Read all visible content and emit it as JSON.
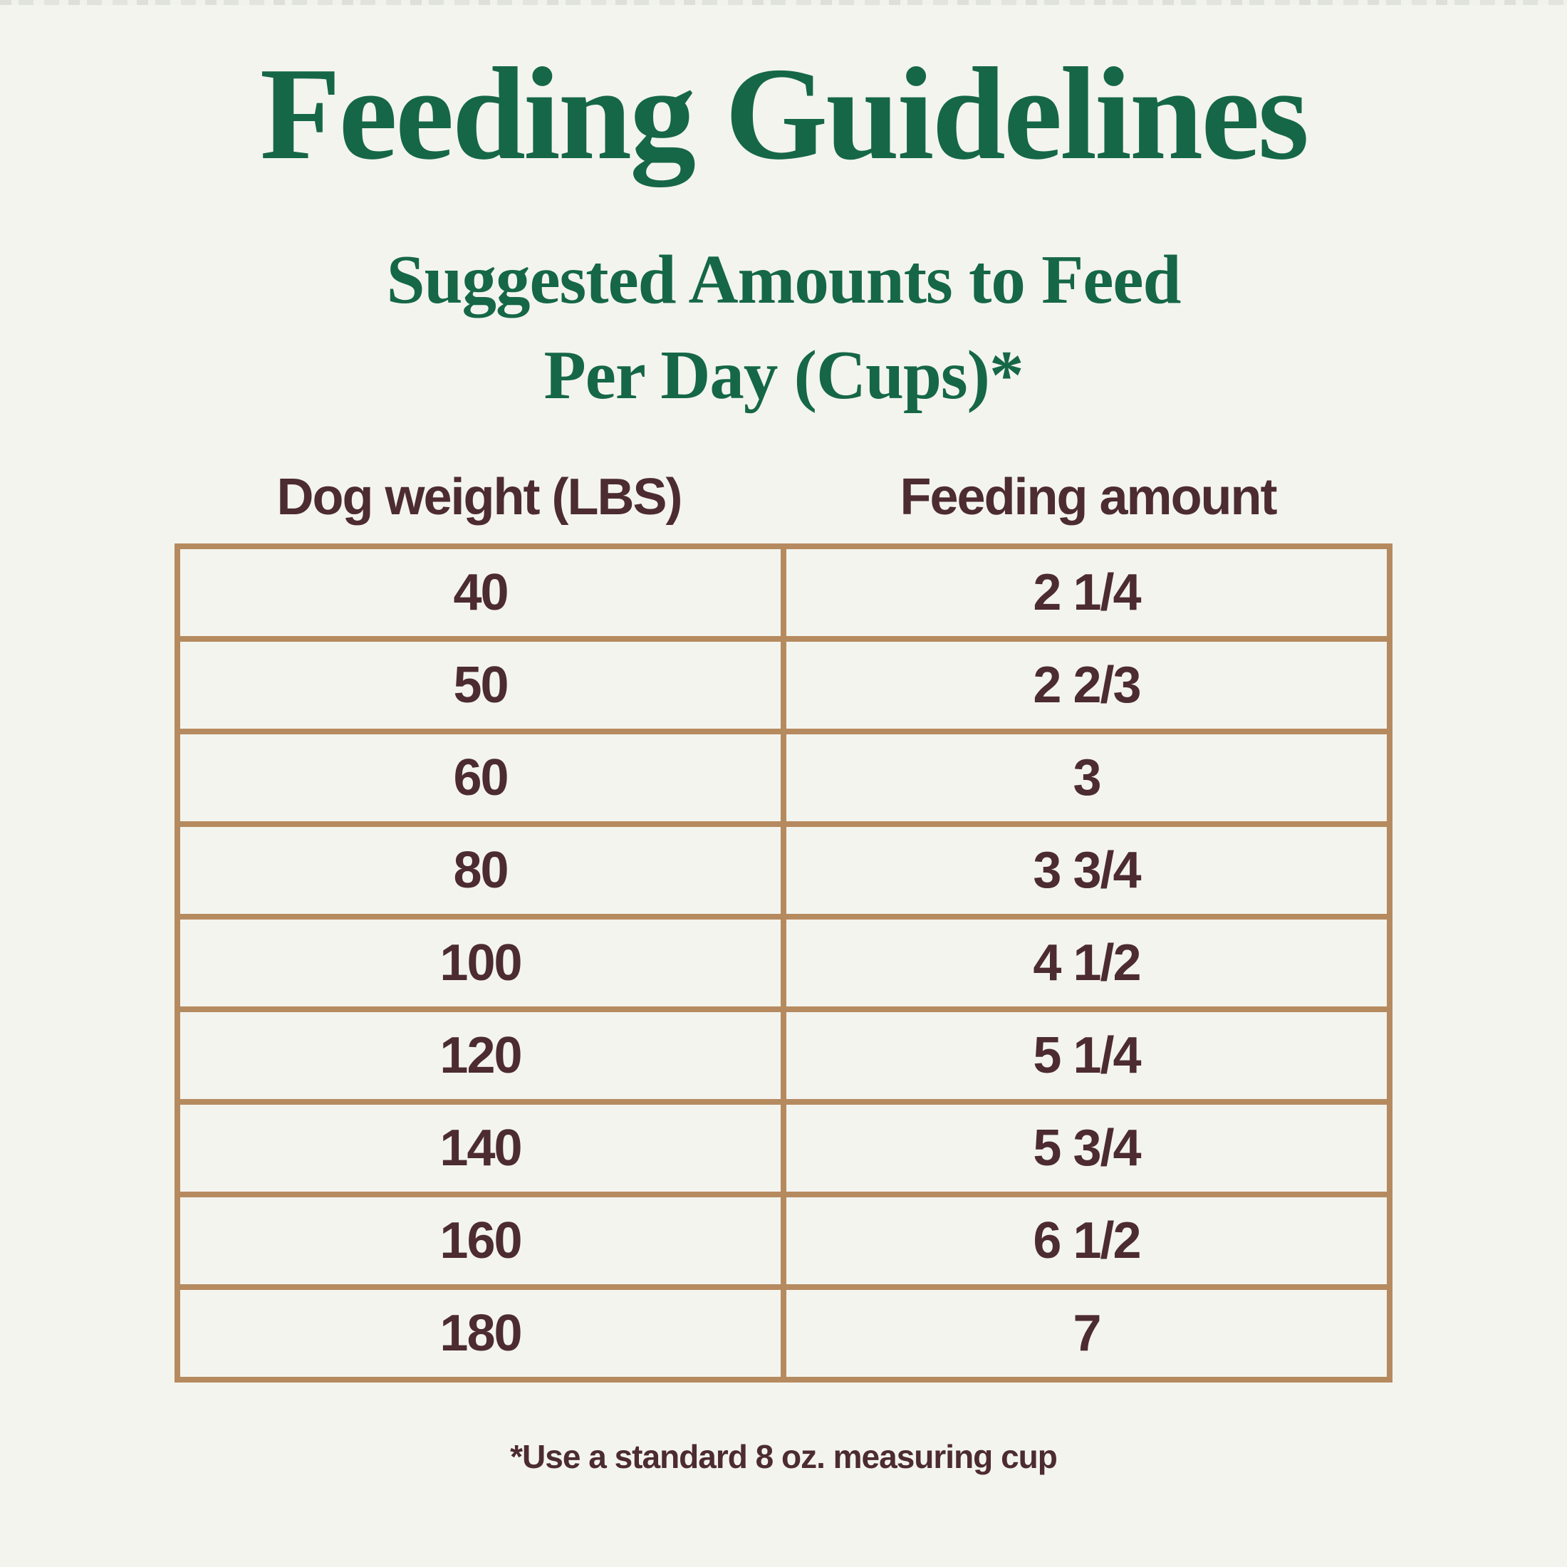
{
  "page": {
    "title": "Feeding Guidelines",
    "subtitle_line1": "Suggested Amounts to Feed",
    "subtitle_line2": "Per Day (Cups)*",
    "footnote": "*Use a standard 8 oz. measuring cup"
  },
  "table": {
    "headers": {
      "weight": "Dog weight (LBS)",
      "amount": "Feeding amount"
    },
    "rows": [
      {
        "weight": "40",
        "amount": "2 1/4"
      },
      {
        "weight": "50",
        "amount": "2 2/3"
      },
      {
        "weight": "60",
        "amount": "3"
      },
      {
        "weight": "80",
        "amount": "3 3/4"
      },
      {
        "weight": "100",
        "amount": "4 1/2"
      },
      {
        "weight": "120",
        "amount": "5 1/4"
      },
      {
        "weight": "140",
        "amount": "5 3/4"
      },
      {
        "weight": "160",
        "amount": "6 1/2"
      },
      {
        "weight": "180",
        "amount": "7"
      }
    ]
  },
  "colors": {
    "background": "#f3f4ee",
    "heading_green": "#156747",
    "text_brown": "#4c2b31",
    "border_tan": "#b68a5f"
  },
  "chart_data": {
    "type": "table",
    "title": "Feeding Guidelines",
    "subtitle": "Suggested Amounts to Feed Per Day (Cups)*",
    "columns": [
      "Dog weight (LBS)",
      "Feeding amount"
    ],
    "rows": [
      [
        "40",
        "2 1/4"
      ],
      [
        "50",
        "2 2/3"
      ],
      [
        "60",
        "3"
      ],
      [
        "80",
        "3 3/4"
      ],
      [
        "100",
        "4 1/2"
      ],
      [
        "120",
        "5 1/4"
      ],
      [
        "140",
        "5 3/4"
      ],
      [
        "160",
        "6 1/2"
      ],
      [
        "180",
        "7"
      ]
    ],
    "footnote": "*Use a standard 8 oz. measuring cup",
    "x_unit": "pounds body weight",
    "y_unit": "cups per day"
  }
}
